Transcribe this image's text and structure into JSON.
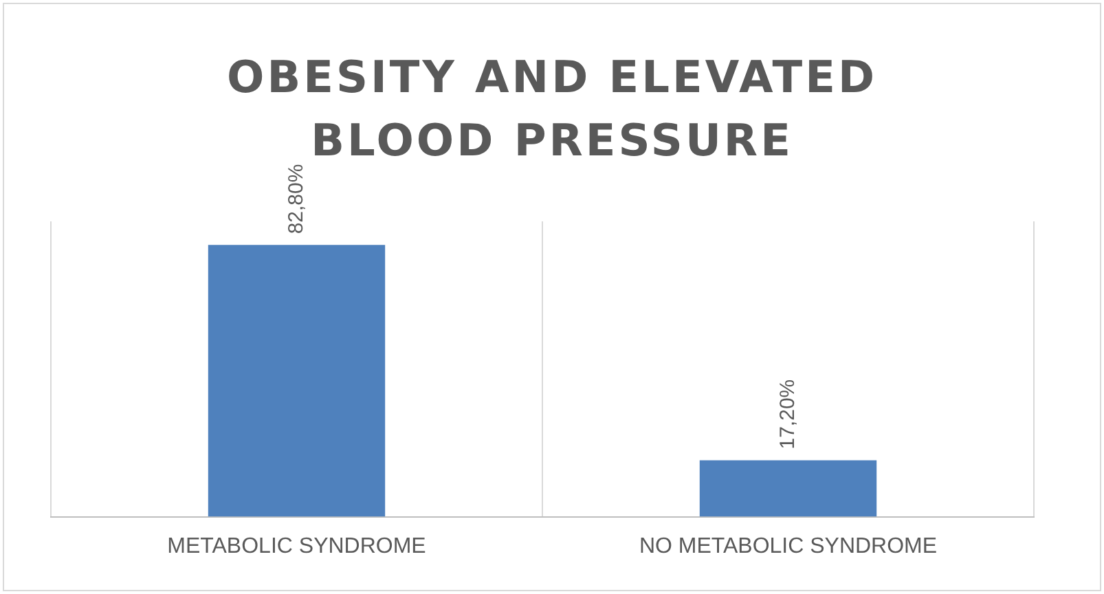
{
  "chart_data": {
    "type": "bar",
    "title": "OBESITY AND ELEVATED BLOOD PRESSURE",
    "categories": [
      "METABOLIC SYNDROME",
      "NO METABOLIC SYNDROME"
    ],
    "values": [
      82.8,
      17.2
    ],
    "color": "#4f81bd",
    "value_labels": [
      "82,80%",
      "17,20%"
    ],
    "grid": "x",
    "legend": false
  }
}
